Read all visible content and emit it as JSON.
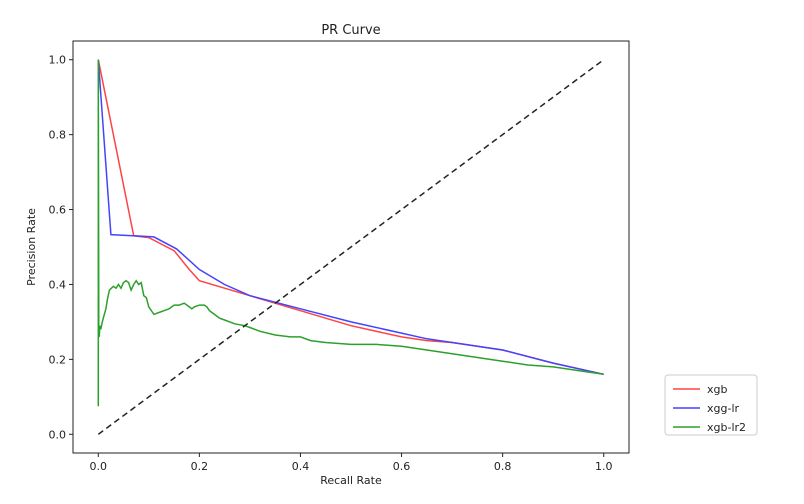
{
  "chart_data": {
    "type": "line",
    "title": "PR Curve",
    "xlabel": "Recall Rate",
    "ylabel": "Precision Rate",
    "xlim": [
      -0.05,
      1.05
    ],
    "ylim": [
      -0.05,
      1.05
    ],
    "xticks": [
      0.0,
      0.2,
      0.4,
      0.6,
      0.8,
      1.0
    ],
    "yticks": [
      0.0,
      0.2,
      0.4,
      0.6,
      0.8,
      1.0
    ],
    "xtick_labels": [
      "0.0",
      "0.2",
      "0.4",
      "0.6",
      "0.8",
      "1.0"
    ],
    "ytick_labels": [
      "0.0",
      "0.2",
      "0.4",
      "0.6",
      "0.8",
      "1.0"
    ],
    "grid": false,
    "legend_position": "outside-bottom-right",
    "series": [
      {
        "name": "xgb",
        "color": "#ff4444",
        "x": [
          0.0,
          0.07,
          0.1,
          0.15,
          0.18,
          0.2,
          0.25,
          0.3,
          0.4,
          0.5,
          0.6,
          0.65,
          0.7,
          0.8,
          0.9,
          1.0
        ],
        "y": [
          1.0,
          0.53,
          0.525,
          0.49,
          0.44,
          0.41,
          0.39,
          0.37,
          0.33,
          0.29,
          0.26,
          0.25,
          0.245,
          0.225,
          0.19,
          0.16
        ]
      },
      {
        "name": "xgg-lr",
        "color": "#4444ff",
        "x": [
          0.0,
          0.025,
          0.07,
          0.11,
          0.155,
          0.2,
          0.25,
          0.3,
          0.4,
          0.5,
          0.6,
          0.65,
          0.7,
          0.8,
          0.9,
          1.0
        ],
        "y": [
          1.0,
          0.533,
          0.53,
          0.527,
          0.495,
          0.44,
          0.4,
          0.37,
          0.335,
          0.3,
          0.27,
          0.255,
          0.245,
          0.225,
          0.19,
          0.16
        ]
      },
      {
        "name": "xgb-lr2",
        "color": "#2ca02c",
        "x": [
          0.0,
          0.0,
          0.001,
          0.002,
          0.003,
          0.005,
          0.008,
          0.012,
          0.015,
          0.018,
          0.022,
          0.026,
          0.03,
          0.035,
          0.04,
          0.045,
          0.05,
          0.055,
          0.06,
          0.065,
          0.07,
          0.075,
          0.08,
          0.085,
          0.09,
          0.095,
          0.1,
          0.11,
          0.12,
          0.13,
          0.14,
          0.15,
          0.16,
          0.17,
          0.18,
          0.185,
          0.19,
          0.2,
          0.21,
          0.215,
          0.22,
          0.23,
          0.24,
          0.25,
          0.27,
          0.29,
          0.3,
          0.32,
          0.35,
          0.38,
          0.4,
          0.42,
          0.45,
          0.5,
          0.55,
          0.6,
          0.65,
          0.7,
          0.75,
          0.8,
          0.85,
          0.9,
          0.95,
          1.0
        ],
        "y": [
          0.075,
          1.0,
          0.27,
          0.26,
          0.29,
          0.28,
          0.3,
          0.32,
          0.335,
          0.36,
          0.385,
          0.39,
          0.395,
          0.39,
          0.4,
          0.39,
          0.405,
          0.41,
          0.405,
          0.385,
          0.4,
          0.41,
          0.4,
          0.405,
          0.37,
          0.365,
          0.34,
          0.32,
          0.325,
          0.33,
          0.335,
          0.345,
          0.345,
          0.35,
          0.34,
          0.335,
          0.34,
          0.345,
          0.345,
          0.34,
          0.33,
          0.32,
          0.31,
          0.305,
          0.295,
          0.29,
          0.285,
          0.275,
          0.265,
          0.26,
          0.26,
          0.25,
          0.245,
          0.24,
          0.24,
          0.235,
          0.225,
          0.215,
          0.205,
          0.195,
          0.185,
          0.18,
          0.17,
          0.16
        ]
      },
      {
        "name": "",
        "color": "#222222",
        "dashed": true,
        "x": [
          0.0,
          1.0
        ],
        "y": [
          0.0,
          1.0
        ]
      }
    ]
  }
}
